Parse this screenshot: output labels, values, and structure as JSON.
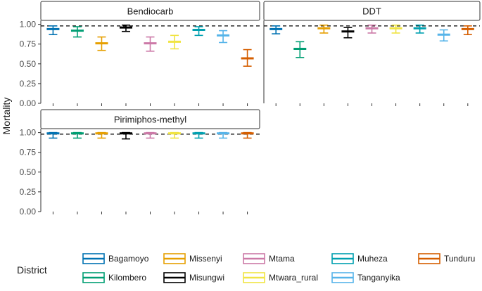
{
  "chart_data": {
    "type": "errorbar",
    "ylabel": "Mortality",
    "ylim": [
      0,
      1.05
    ],
    "yticks": [
      0.0,
      0.25,
      0.5,
      0.75,
      1.0
    ],
    "ytick_labels": [
      "0.00",
      "0.25",
      "0.50",
      "0.75",
      "1.00"
    ],
    "reference_line": 0.98,
    "districts": [
      "Bagamoyo",
      "Kilombero",
      "Missenyi",
      "Misungwi",
      "Mtama",
      "Mtwara_rural",
      "Muheza",
      "Tanganyika",
      "Tunduru"
    ],
    "colors": {
      "Bagamoyo": "#0072B2",
      "Kilombero": "#009E73",
      "Missenyi": "#E69F00",
      "Misungwi": "#000000",
      "Mtama": "#CC79A7",
      "Mtwara_rural": "#F0E442",
      "Muheza": "#00A0B0",
      "Tanganyika": "#56B4E9",
      "Tunduru": "#D55E00"
    },
    "legend": {
      "title": "District",
      "position": "bottom",
      "columns": [
        [
          "Bagamoyo",
          "Kilombero"
        ],
        [
          "Missenyi",
          "Misungwi"
        ],
        [
          "Mtama",
          "Mtwara_rural"
        ],
        [
          "Muheza",
          "Tanganyika"
        ],
        [
          "Tunduru"
        ]
      ]
    },
    "panels": [
      {
        "title": "Bendiocarb",
        "series": [
          {
            "district": "Bagamoyo",
            "mean": 0.94,
            "low": 0.87,
            "high": 0.98
          },
          {
            "district": "Kilombero",
            "mean": 0.92,
            "low": 0.84,
            "high": 0.97
          },
          {
            "district": "Missenyi",
            "mean": 0.76,
            "low": 0.67,
            "high": 0.84
          },
          {
            "district": "Misungwi",
            "mean": 0.96,
            "low": 0.91,
            "high": 0.99
          },
          {
            "district": "Mtama",
            "mean": 0.76,
            "low": 0.66,
            "high": 0.84
          },
          {
            "district": "Mtwara_rural",
            "mean": 0.78,
            "low": 0.69,
            "high": 0.86
          },
          {
            "district": "Muheza",
            "mean": 0.93,
            "low": 0.86,
            "high": 0.97
          },
          {
            "district": "Tanganyika",
            "mean": 0.86,
            "low": 0.77,
            "high": 0.92
          },
          {
            "district": "Tunduru",
            "mean": 0.57,
            "low": 0.47,
            "high": 0.68
          }
        ]
      },
      {
        "title": "DDT",
        "series": [
          {
            "district": "Bagamoyo",
            "mean": 0.94,
            "low": 0.88,
            "high": 0.98
          },
          {
            "district": "Kilombero",
            "mean": 0.69,
            "low": 0.58,
            "high": 0.78
          },
          {
            "district": "Missenyi",
            "mean": 0.95,
            "low": 0.89,
            "high": 0.99
          },
          {
            "district": "Misungwi",
            "mean": 0.91,
            "low": 0.83,
            "high": 0.96
          },
          {
            "district": "Mtama",
            "mean": 0.95,
            "low": 0.89,
            "high": 0.99
          },
          {
            "district": "Mtwara_rural",
            "mean": 0.95,
            "low": 0.89,
            "high": 0.99
          },
          {
            "district": "Muheza",
            "mean": 0.95,
            "low": 0.89,
            "high": 0.99
          },
          {
            "district": "Tanganyika",
            "mean": 0.87,
            "low": 0.79,
            "high": 0.93
          },
          {
            "district": "Tunduru",
            "mean": 0.94,
            "low": 0.87,
            "high": 0.98
          }
        ]
      },
      {
        "title": "Pirimiphos-methyl",
        "series": [
          {
            "district": "Bagamoyo",
            "mean": 0.99,
            "low": 0.93,
            "high": 1.0
          },
          {
            "district": "Kilombero",
            "mean": 0.99,
            "low": 0.93,
            "high": 1.0
          },
          {
            "district": "Missenyi",
            "mean": 0.99,
            "low": 0.93,
            "high": 1.0
          },
          {
            "district": "Misungwi",
            "mean": 0.99,
            "low": 0.92,
            "high": 1.0
          },
          {
            "district": "Mtama",
            "mean": 0.99,
            "low": 0.93,
            "high": 1.0
          },
          {
            "district": "Mtwara_rural",
            "mean": 0.99,
            "low": 0.93,
            "high": 1.0
          },
          {
            "district": "Muheza",
            "mean": 0.99,
            "low": 0.93,
            "high": 1.0
          },
          {
            "district": "Tanganyika",
            "mean": 0.99,
            "low": 0.93,
            "high": 1.0
          },
          {
            "district": "Tunduru",
            "mean": 0.99,
            "low": 0.93,
            "high": 1.0
          }
        ]
      }
    ]
  }
}
